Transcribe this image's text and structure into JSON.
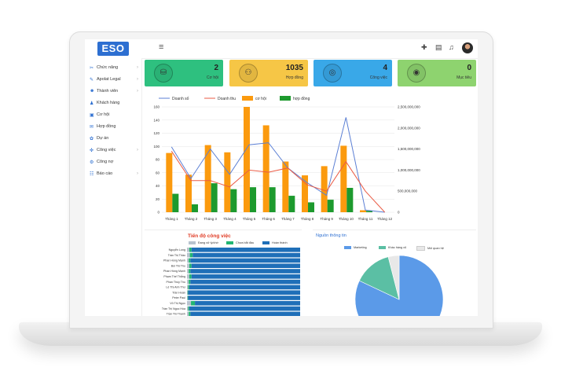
{
  "brand": {
    "logo": "ESO"
  },
  "topbar": {
    "menu_icon": "≡",
    "add_icon": "✚",
    "doc_icon": "▤",
    "bell_icon": "♫"
  },
  "sidebar": {
    "items": [
      {
        "label": "Chức năng",
        "icon": "✂",
        "arrow": "›"
      },
      {
        "label": "Apolat Legal",
        "icon": "✎",
        "arrow": "›"
      },
      {
        "label": "Thành viên",
        "icon": "☻",
        "arrow": "›"
      },
      {
        "label": "Khách hàng",
        "icon": "♟",
        "arrow": ""
      },
      {
        "label": "Cơ hội",
        "icon": "▣",
        "arrow": ""
      },
      {
        "label": "Hợp đồng",
        "icon": "✉",
        "arrow": ""
      },
      {
        "label": "Dự án",
        "icon": "✿",
        "arrow": ""
      },
      {
        "label": "Công việc",
        "icon": "✜",
        "arrow": "›"
      },
      {
        "label": "Công nợ",
        "icon": "⚙",
        "arrow": ""
      },
      {
        "label": "Báo cáo",
        "icon": "☷",
        "arrow": "›"
      }
    ]
  },
  "cards": [
    {
      "value": "2",
      "label": "Cơ hội",
      "color": "#2ec07f",
      "icon": "⛁"
    },
    {
      "value": "1035",
      "label": "Hợp đồng",
      "color": "#f6c646",
      "icon": "⚇"
    },
    {
      "value": "4",
      "label": "Công việc",
      "color": "#39a8e8",
      "icon": "◎"
    },
    {
      "value": "0",
      "label": "Mục tiêu",
      "color": "#8ed36f",
      "icon": "◉"
    }
  ],
  "chart_data": {
    "type": "bar",
    "categories": [
      "Tháng 1",
      "Tháng 2",
      "Tháng 3",
      "Tháng 4",
      "Tháng 5",
      "Tháng 6",
      "Tháng 7",
      "Tháng 8",
      "Tháng 9",
      "Tháng 10",
      "Tháng 11",
      "Tháng 12"
    ],
    "series": [
      {
        "name": "Doanh số",
        "kind": "line",
        "axis": "right",
        "color": "#5b7fd4",
        "values": [
          1550000000,
          800000000,
          1500000000,
          900000000,
          1600000000,
          1650000000,
          1050000000,
          700000000,
          400000000,
          2250000000,
          50000000,
          0
        ]
      },
      {
        "name": "Doanh thu",
        "kind": "line",
        "axis": "right",
        "color": "#ea5b45",
        "values": [
          1450000000,
          750000000,
          750000000,
          600000000,
          1000000000,
          950000000,
          1050000000,
          650000000,
          500000000,
          1200000000,
          500000000,
          0
        ]
      },
      {
        "name": "cơ hội",
        "kind": "bar",
        "axis": "left",
        "color": "#fb9a0e",
        "values": [
          90,
          57,
          102,
          91,
          160,
          132,
          77,
          56,
          70,
          101,
          3,
          0
        ]
      },
      {
        "name": "hợp đồng",
        "kind": "bar",
        "axis": "left",
        "color": "#1d9a2e",
        "values": [
          28,
          12,
          44,
          35,
          38,
          38,
          25,
          15,
          19,
          37,
          2,
          0
        ]
      }
    ],
    "yleft": {
      "min": 0,
      "max": 160,
      "ticks": [
        0,
        20,
        40,
        60,
        80,
        100,
        120,
        140,
        160
      ]
    },
    "yright": {
      "min": 0,
      "max": 2500000000,
      "ticks": [
        "0",
        "500,000,000",
        "1,000,000,000",
        "1,500,000,000",
        "2,000,000,000",
        "2,500,000,000"
      ]
    }
  },
  "progress": {
    "title": "Tiến độ công việc",
    "legend": [
      {
        "label": "Đang xử lý/chờ",
        "color": "#b8c3cf"
      },
      {
        "label": "Chưa bắt đầu",
        "color": "#22b573"
      },
      {
        "label": "Hoàn thành",
        "color": "#1f6fb8"
      }
    ],
    "rows": [
      {
        "name": "Nguyễn Long",
        "done": 0.96
      },
      {
        "name": "Trần Thị Thảo",
        "done": 0.95
      },
      {
        "name": "Phan Hồng Mạnh",
        "done": 0.97
      },
      {
        "name": "Bùi Thị Thu",
        "done": 0.96
      },
      {
        "name": "Phan Hồng Mạnh",
        "done": 0.97
      },
      {
        "name": "Phạm Thế Thắng",
        "done": 0.96
      },
      {
        "name": "Phan Thúy Thu",
        "done": 0.97
      },
      {
        "name": "Lê Thị Anh Thư",
        "done": 0.98
      },
      {
        "name": "Trần Hoàn",
        "done": 0.99
      },
      {
        "name": "Peter Paul",
        "done": 0.99
      },
      {
        "name": "Vũ Thị Ngọc",
        "done": 0.93
      },
      {
        "name": "Trần Thị Ngọc Hòa",
        "done": 0.98
      },
      {
        "name": "Trần Thị Thanh",
        "done": 0.97
      },
      {
        "name": "Cao Gia Hanh",
        "done": 0.98
      },
      {
        "name": "Trần Đức Minh",
        "done": 0.97
      }
    ]
  },
  "sources": {
    "title": "Nguồn thông tin",
    "legend": [
      {
        "label": "Marketing",
        "color": "#5b9ae8"
      },
      {
        "label": "Khác hàng cũ",
        "color": "#5bbfa4"
      },
      {
        "label": "Mối quan hệ",
        "color": "#e8e8e8"
      }
    ],
    "slices": [
      {
        "label": "Marketing",
        "value": 82,
        "color": "#5b9ae8"
      },
      {
        "label": "Khác hàng cũ",
        "value": 14,
        "color": "#5bbfa4"
      },
      {
        "label": "Mối quan hệ",
        "value": 4,
        "color": "#e8e8e8"
      }
    ]
  }
}
